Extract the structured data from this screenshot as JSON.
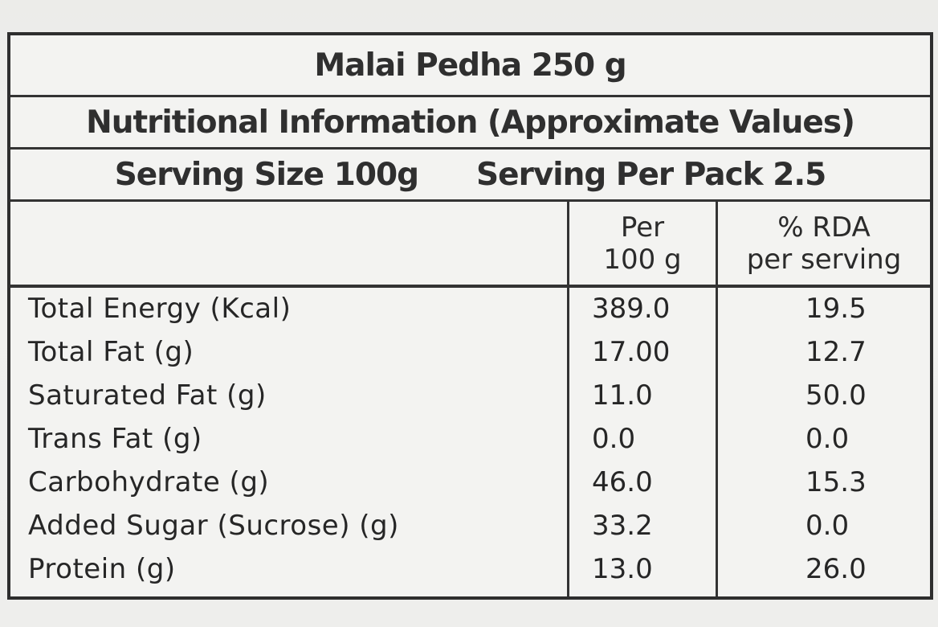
{
  "title": "Malai Pedha 250 g",
  "subtitle": "Nutritional Information (Approximate Values)",
  "serving_size": "Serving Size 100g",
  "serving_per_pack": "Serving Per Pack 2.5",
  "columns": {
    "per_line1": "Per",
    "per_line2": "100 g",
    "rda_line1": "% RDA",
    "rda_line2": "per serving"
  },
  "rows": [
    {
      "name": "Total Energy (Kcal)",
      "per_100g": "389.0",
      "rda": "19.5"
    },
    {
      "name": "Total Fat (g)",
      "per_100g": "17.00",
      "rda": "12.7"
    },
    {
      "name": "Saturated Fat (g)",
      "per_100g": "11.0",
      "rda": "50.0"
    },
    {
      "name": "Trans Fat (g)",
      "per_100g": "0.0",
      "rda": "0.0"
    },
    {
      "name": "Carbohydrate (g)",
      "per_100g": "46.0",
      "rda": "15.3"
    },
    {
      "name": "Added Sugar (Sucrose) (g)",
      "per_100g": "33.2",
      "rda": "0.0"
    },
    {
      "name": "Protein (g)",
      "per_100g": "13.0",
      "rda": "26.0"
    }
  ]
}
